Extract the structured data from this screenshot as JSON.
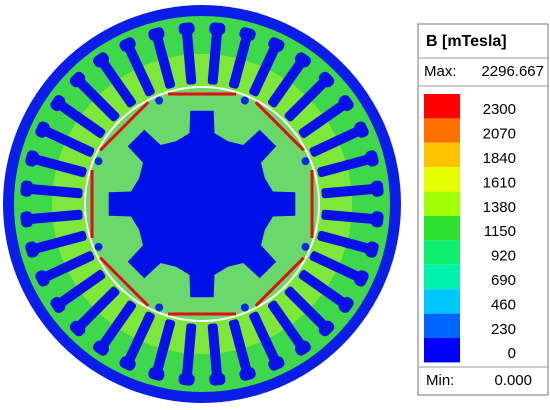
{
  "legend": {
    "title": "B [mTesla]",
    "max_label": "Max:",
    "max_value": "2296.667",
    "min_label": "Min:",
    "min_value": "0.000",
    "levels": [
      {
        "label": "2300",
        "color": "#ff0000"
      },
      {
        "label": "2070",
        "color": "#ff7000"
      },
      {
        "label": "1840",
        "color": "#ffc400"
      },
      {
        "label": "1610",
        "color": "#e6ff00"
      },
      {
        "label": "1380",
        "color": "#a0ff00"
      },
      {
        "label": "1150",
        "color": "#30e030"
      },
      {
        "label": "920",
        "color": "#10f070"
      },
      {
        "label": "690",
        "color": "#00f0b0"
      },
      {
        "label": "460",
        "color": "#00c8ff"
      },
      {
        "label": "230",
        "color": "#0064ff"
      },
      {
        "label": "0",
        "color": "#0000ff"
      }
    ]
  }
}
